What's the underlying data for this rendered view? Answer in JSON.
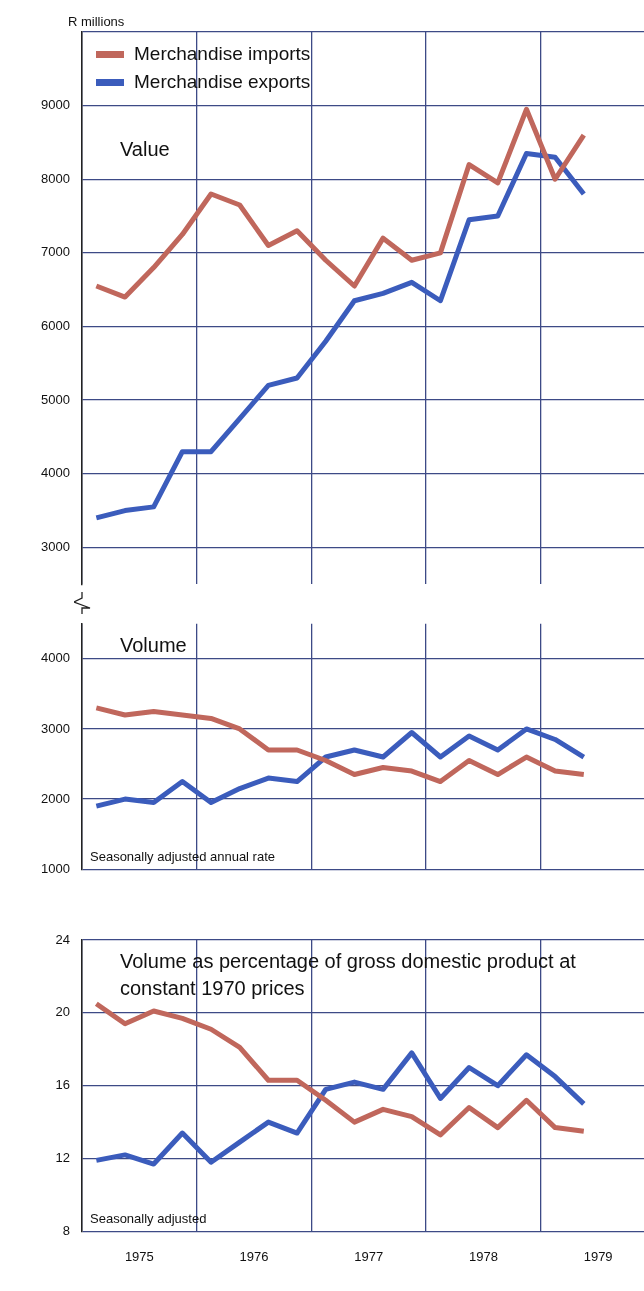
{
  "chart_data": [
    {
      "type": "line",
      "title": "Value",
      "ylabel": "R millions",
      "legend": "top left",
      "grid": true,
      "tick_labels": "y",
      "x": [
        1974.625,
        1974.875,
        1975.125,
        1975.375,
        1975.625,
        1975.875,
        1976.125,
        1976.375,
        1976.625,
        1976.875,
        1977.125,
        1977.375,
        1977.625,
        1977.875,
        1978.125,
        1978.375,
        1978.625,
        1978.875
      ],
      "xlim": [
        1974.5,
        1979.4
      ],
      "xticks": [
        {
          "value": 1974.5,
          "label": null
        },
        {
          "value": 1975.5,
          "label": null
        },
        {
          "value": 1976.5,
          "label": null
        },
        {
          "value": 1977.5,
          "label": null
        },
        {
          "value": 1978.5,
          "label": null
        }
      ],
      "ylim": [
        2500,
        10000
      ],
      "yticks": [
        3000,
        4000,
        5000,
        6000,
        7000,
        8000,
        9000,
        {
          "value": 10000,
          "label": null
        }
      ],
      "series": [
        {
          "name": "Merchandise imports",
          "color": "#c0675c",
          "values": [
            6550,
            6400,
            6800,
            7250,
            7800,
            7650,
            7100,
            7300,
            6900,
            6550,
            7200,
            6900,
            7000,
            8200,
            7950,
            8950,
            8000,
            8600
          ]
        },
        {
          "name": "Merchandise exports",
          "color": "#3b5cbc",
          "values": [
            3400,
            3500,
            3550,
            4300,
            4300,
            4750,
            5200,
            5300,
            5800,
            6350,
            6450,
            6600,
            6350,
            7450,
            7500,
            8350,
            8300,
            7800
          ]
        }
      ]
    },
    {
      "type": "line",
      "title": "Volume",
      "grid": true,
      "tick_labels": "y",
      "annotations": [
        "Seasonally adjusted annual rate"
      ],
      "x": [
        1974.625,
        1974.875,
        1975.125,
        1975.375,
        1975.625,
        1975.875,
        1976.125,
        1976.375,
        1976.625,
        1976.875,
        1977.125,
        1977.375,
        1977.625,
        1977.875,
        1978.125,
        1978.375,
        1978.625,
        1978.875
      ],
      "xlim": [
        1974.5,
        1979.4
      ],
      "xticks": [
        {
          "value": 1974.5,
          "label": null
        },
        {
          "value": 1975.5,
          "label": null
        },
        {
          "value": 1976.5,
          "label": null
        },
        {
          "value": 1977.5,
          "label": null
        },
        {
          "value": 1978.5,
          "label": null
        }
      ],
      "ylim": [
        1000,
        4500
      ],
      "yticks": [
        1000,
        2000,
        3000,
        4000
      ],
      "series": [
        {
          "color": "#c0675c",
          "values": [
            3300,
            3200,
            3250,
            3200,
            3150,
            3000,
            2700,
            2700,
            2550,
            2350,
            2450,
            2400,
            2250,
            2550,
            2350,
            2600,
            2400,
            2350
          ]
        },
        {
          "color": "#3b5cbc",
          "values": [
            1900,
            2000,
            1950,
            2250,
            1950,
            2150,
            2300,
            2250,
            2600,
            2700,
            2600,
            2950,
            2600,
            2900,
            2700,
            3000,
            2850,
            2600
          ]
        }
      ]
    },
    {
      "type": "line",
      "title": "Volume as percentage of gross domestic product at constant 1970 prices",
      "grid": true,
      "annotations": [
        "Seasonally adjusted"
      ],
      "x": [
        1974.625,
        1974.875,
        1975.125,
        1975.375,
        1975.625,
        1975.875,
        1976.125,
        1976.375,
        1976.625,
        1976.875,
        1977.125,
        1977.375,
        1977.625,
        1977.875,
        1978.125,
        1978.375,
        1978.625,
        1978.875
      ],
      "xlim": [
        1974.5,
        1979.4
      ],
      "xticks": [
        {
          "value": 1974.5,
          "label": null
        },
        1975,
        {
          "value": 1975.5,
          "label": null
        },
        1976,
        {
          "value": 1976.5,
          "label": null
        },
        1977,
        {
          "value": 1977.5,
          "label": null
        },
        1978,
        {
          "value": 1978.5,
          "label": null
        },
        1979
      ],
      "ylim": [
        8,
        24
      ],
      "yticks": [
        8,
        12,
        16,
        20,
        24
      ],
      "series": [
        {
          "color": "#c0675c",
          "values": [
            20.5,
            19.4,
            20.1,
            19.7,
            19.1,
            18.1,
            16.3,
            16.3,
            15.2,
            14.0,
            14.7,
            14.3,
            13.3,
            14.8,
            13.7,
            15.2,
            13.7,
            13.5
          ]
        },
        {
          "color": "#3b5cbc",
          "values": [
            11.9,
            12.2,
            11.7,
            13.4,
            11.8,
            12.9,
            14.0,
            13.4,
            15.8,
            16.2,
            15.8,
            17.8,
            15.3,
            17.0,
            16.0,
            17.7,
            16.5,
            15.0
          ]
        }
      ]
    }
  ]
}
